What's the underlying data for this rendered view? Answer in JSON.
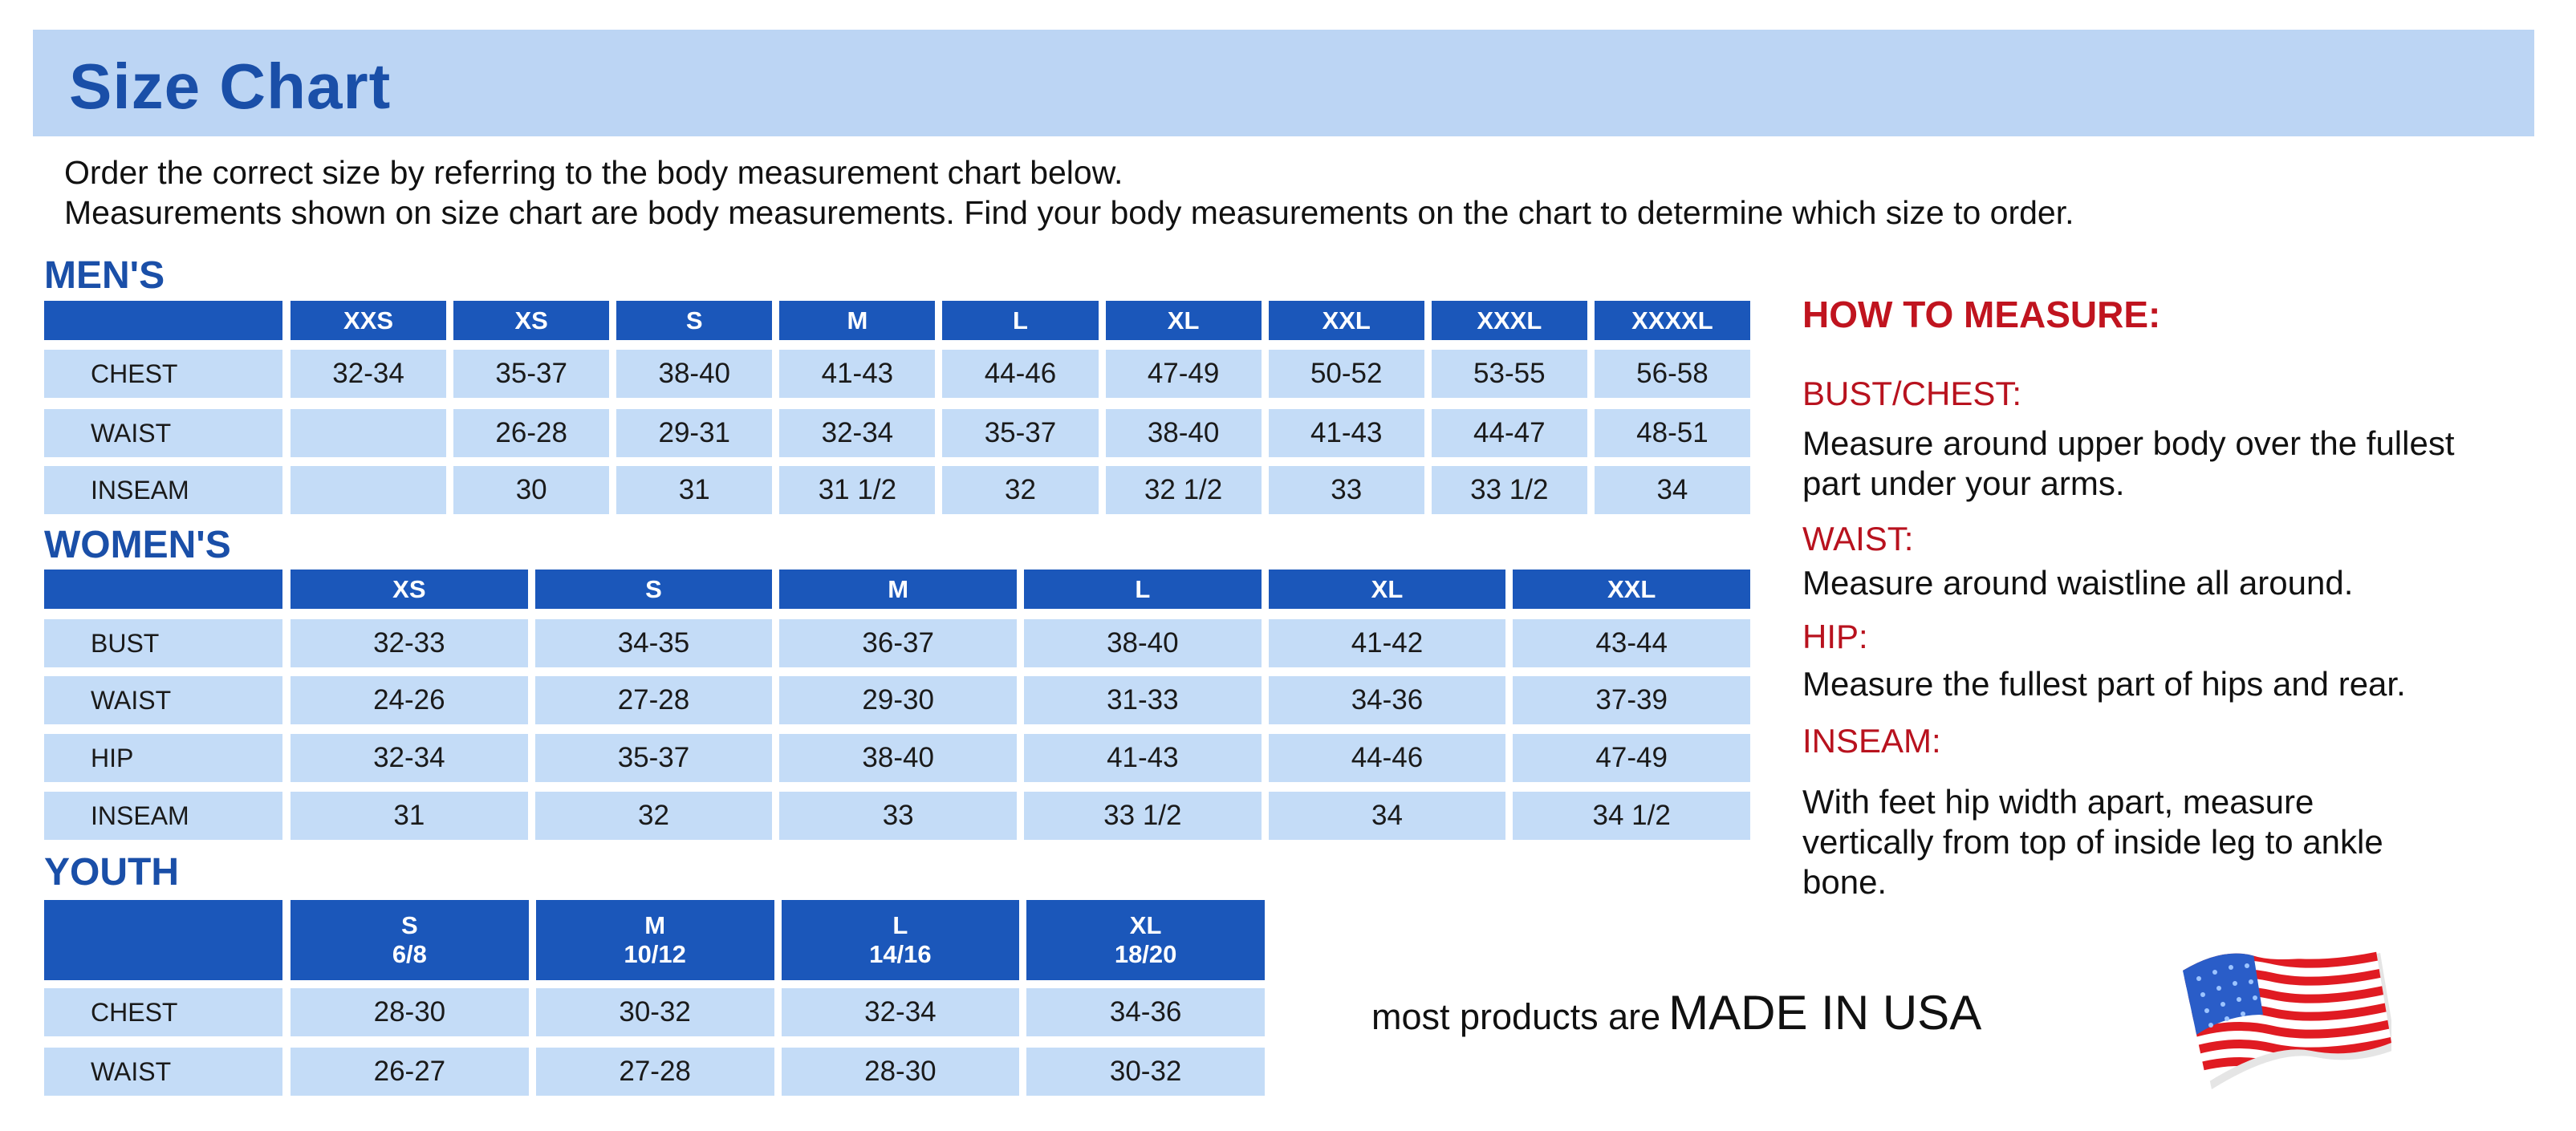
{
  "title": "Size Chart",
  "intro": [
    "Order the correct size by referring to the body measurement chart below.",
    "Measurements shown on size chart are body measurements.  Find your body measurements on the chart to determine which size to order."
  ],
  "colors": {
    "header_band": "#bcd5f4",
    "title": "#1a4fa8",
    "table_header": "#1b57ba",
    "table_cell": "#c4dcf7",
    "measure_heading": "#c0141f"
  },
  "mens": {
    "label": "MEN'S",
    "sizes": [
      "XXS",
      "XS",
      "S",
      "M",
      "L",
      "XL",
      "XXL",
      "XXXL",
      "XXXXL"
    ],
    "rows": [
      {
        "label": "CHEST",
        "values": [
          "32-34",
          "35-37",
          "38-40",
          "41-43",
          "44-46",
          "47-49",
          "50-52",
          "53-55",
          "56-58"
        ]
      },
      {
        "label": "WAIST",
        "values": [
          "",
          "26-28",
          "29-31",
          "32-34",
          "35-37",
          "38-40",
          "41-43",
          "44-47",
          "48-51"
        ]
      },
      {
        "label": "INSEAM",
        "values": [
          "",
          "30",
          "31",
          "31 1/2",
          "32",
          "32 1/2",
          "33",
          "33 1/2",
          "34"
        ]
      }
    ]
  },
  "womens": {
    "label": "WOMEN'S",
    "sizes": [
      "XS",
      "S",
      "M",
      "L",
      "XL",
      "XXL"
    ],
    "rows": [
      {
        "label": "BUST",
        "values": [
          "32-33",
          "34-35",
          "36-37",
          "38-40",
          "41-42",
          "43-44"
        ]
      },
      {
        "label": "WAIST",
        "values": [
          "24-26",
          "27-28",
          "29-30",
          "31-33",
          "34-36",
          "37-39"
        ]
      },
      {
        "label": "HIP",
        "values": [
          "32-34",
          "35-37",
          "38-40",
          "41-43",
          "44-46",
          "47-49"
        ]
      },
      {
        "label": "INSEAM",
        "values": [
          "31",
          "32",
          "33",
          "33 1/2",
          "34",
          "34 1/2"
        ]
      }
    ]
  },
  "youth": {
    "label": "YOUTH",
    "sizes": [
      "S\n6/8",
      "M\n10/12",
      "L\n14/16",
      "XL\n18/20"
    ],
    "rows": [
      {
        "label": "CHEST",
        "values": [
          "28-30",
          "30-32",
          "32-34",
          "34-36"
        ]
      },
      {
        "label": "WAIST",
        "values": [
          "26-27",
          "27-28",
          "28-30",
          "30-32"
        ]
      }
    ]
  },
  "how_to_measure": {
    "heading": "HOW TO MEASURE:",
    "items": [
      {
        "label": "BUST/CHEST:",
        "text": "Measure around upper body over the fullest part under your arms."
      },
      {
        "label": "WAIST:",
        "text": "Measure around waistline all around."
      },
      {
        "label": "HIP:",
        "text": "Measure the fullest part of hips and rear."
      },
      {
        "label": "INSEAM:",
        "text": "With feet hip width apart, measure vertically from top of inside leg to ankle bone."
      }
    ]
  },
  "made_in": {
    "prefix": "most products are",
    "emphasis": "MADE IN USA",
    "icon": "us-flag-icon"
  }
}
